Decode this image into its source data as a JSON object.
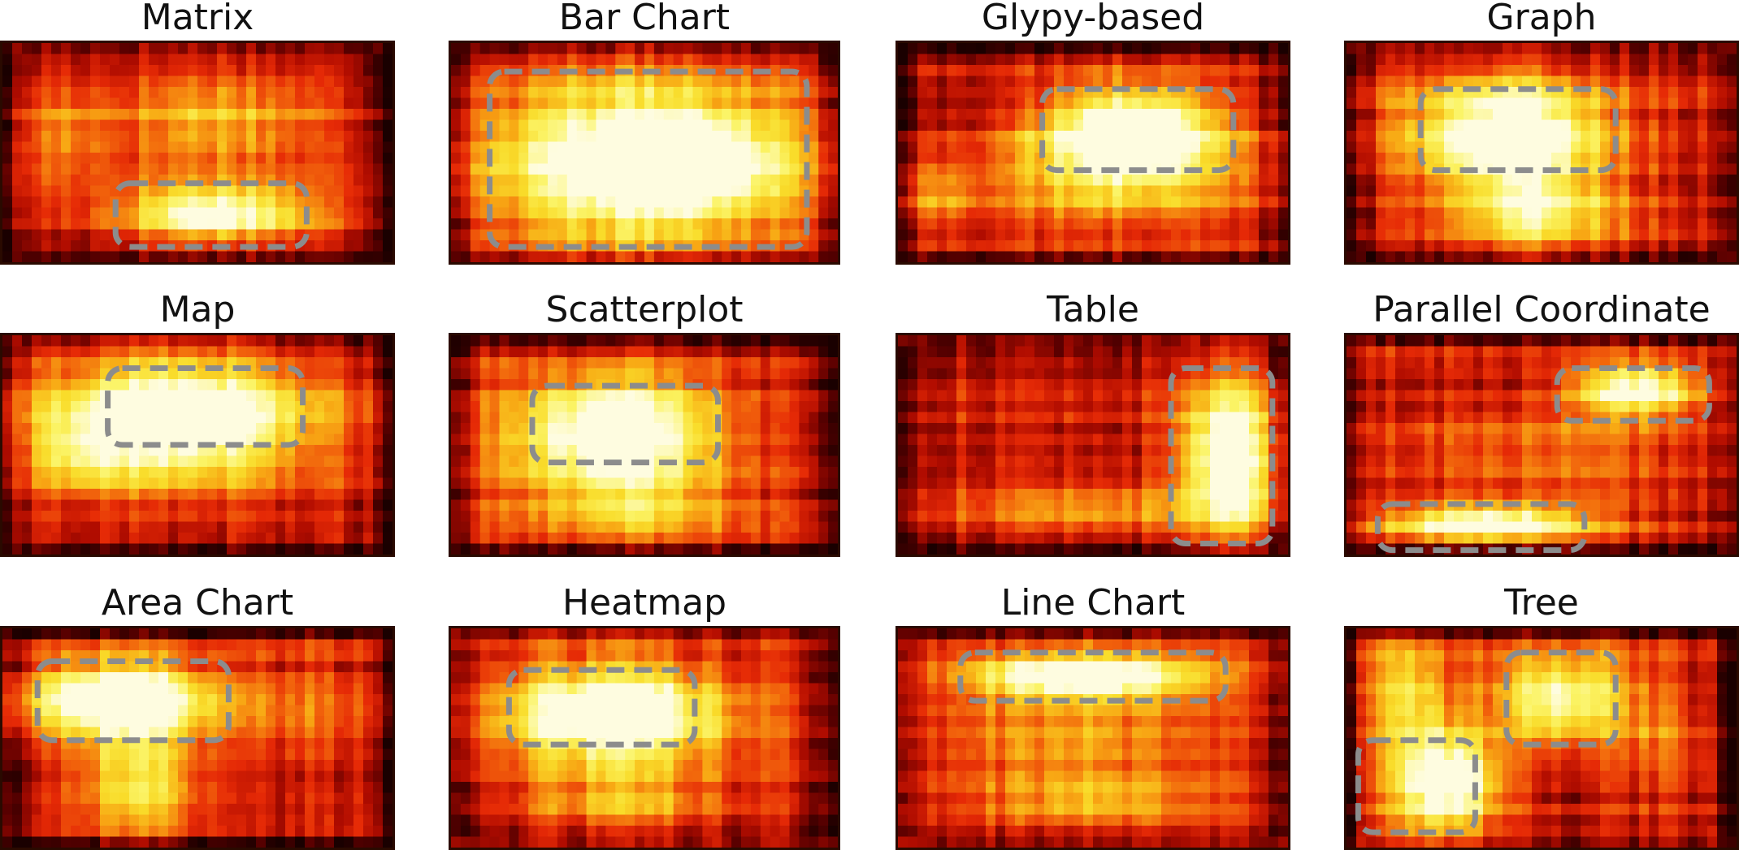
{
  "figure": {
    "panels": [
      {
        "title": "Matrix"
      },
      {
        "title": "Bar Chart"
      },
      {
        "title": "Glypy-based"
      },
      {
        "title": "Graph"
      },
      {
        "title": "Map"
      },
      {
        "title": "Scatterplot"
      },
      {
        "title": "Table"
      },
      {
        "title": "Parallel Coordinate"
      },
      {
        "title": "Area Chart"
      },
      {
        "title": "Heatmap"
      },
      {
        "title": "Line Chart"
      },
      {
        "title": "Tree"
      }
    ],
    "colors": {
      "ramp": [
        "#1a0000",
        "#5a0000",
        "#b00c00",
        "#e62a06",
        "#f2660c",
        "#f8a814",
        "#f9dc2a",
        "#fbf468",
        "#fefce0"
      ],
      "dashed_box": "#8c8c8c",
      "title_text": "#111111"
    }
  }
}
